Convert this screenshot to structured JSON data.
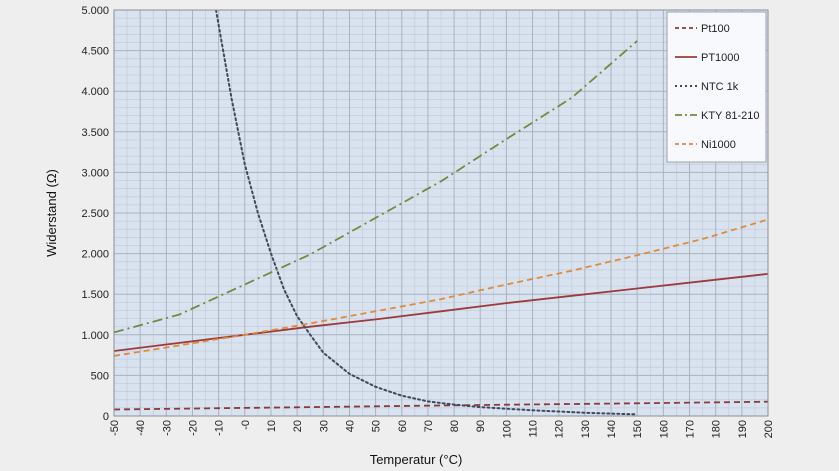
{
  "chart_data": {
    "type": "line",
    "xlabel": "Temperatur (°C)",
    "ylabel": "Widerstand (Ω)",
    "xlim": [
      -50,
      200
    ],
    "ylim": [
      0,
      5000
    ],
    "x_ticks": [
      "-50",
      "-40",
      "-30",
      "-20",
      "-10",
      "-0",
      "10",
      "20",
      "30",
      "40",
      "50",
      "60",
      "70",
      "80",
      "90",
      "100",
      "110",
      "120",
      "130",
      "140",
      "150",
      "160",
      "170",
      "180",
      "190",
      "200"
    ],
    "y_ticks": [
      {
        "value": 0,
        "label": "0"
      },
      {
        "value": 500,
        "label": "500"
      },
      {
        "value": 1000,
        "label": "1.000"
      },
      {
        "value": 1500,
        "label": "1.500"
      },
      {
        "value": 2000,
        "label": "2.000"
      },
      {
        "value": 2500,
        "label": "2.500"
      },
      {
        "value": 3000,
        "label": "3.000"
      },
      {
        "value": 3500,
        "label": "3.500"
      },
      {
        "value": 4000,
        "label": "4.000"
      },
      {
        "value": 4500,
        "label": "4.500"
      },
      {
        "value": 5000,
        "label": "5.000"
      }
    ],
    "grid": true,
    "legend_position": "top-right",
    "series": [
      {
        "name": "Pt100",
        "color": "#8b3a3a",
        "style": "dashed",
        "x": [
          -50,
          0,
          50,
          100,
          150,
          200
        ],
        "y": [
          80,
          100,
          119,
          139,
          157,
          176
        ]
      },
      {
        "name": "PT1000",
        "color": "#9b3b3b",
        "style": "solid",
        "x": [
          -50,
          -25,
          0,
          25,
          50,
          75,
          100,
          125,
          150,
          175,
          200
        ],
        "y": [
          800,
          900,
          1000,
          1100,
          1190,
          1290,
          1390,
          1480,
          1570,
          1660,
          1750
        ]
      },
      {
        "name": "NTC 1k",
        "color": "#3d4a5c",
        "style": "dotted",
        "x": [
          -11,
          -5,
          0,
          5,
          10,
          15,
          20,
          25,
          30,
          40,
          50,
          60,
          70,
          80,
          90,
          100,
          110,
          120,
          130,
          140,
          150
        ],
        "y": [
          5000,
          3900,
          3100,
          2500,
          2000,
          1560,
          1230,
          1000,
          780,
          520,
          360,
          250,
          180,
          140,
          110,
          90,
          70,
          55,
          40,
          30,
          20
        ]
      },
      {
        "name": "KTY 81-210",
        "color": "#6f8c3e",
        "style": "dashdot",
        "x": [
          -50,
          -25,
          0,
          25,
          50,
          75,
          100,
          125,
          150
        ],
        "y": [
          1030,
          1250,
          1620,
          1990,
          2440,
          2890,
          3410,
          3920,
          4620
        ]
      },
      {
        "name": "Ni1000",
        "color": "#e08a3c",
        "style": "dashed",
        "x": [
          -50,
          -25,
          0,
          25,
          50,
          75,
          100,
          125,
          150,
          175,
          200
        ],
        "y": [
          740,
          870,
          1000,
          1140,
          1290,
          1440,
          1620,
          1790,
          1980,
          2180,
          2420
        ]
      }
    ]
  }
}
